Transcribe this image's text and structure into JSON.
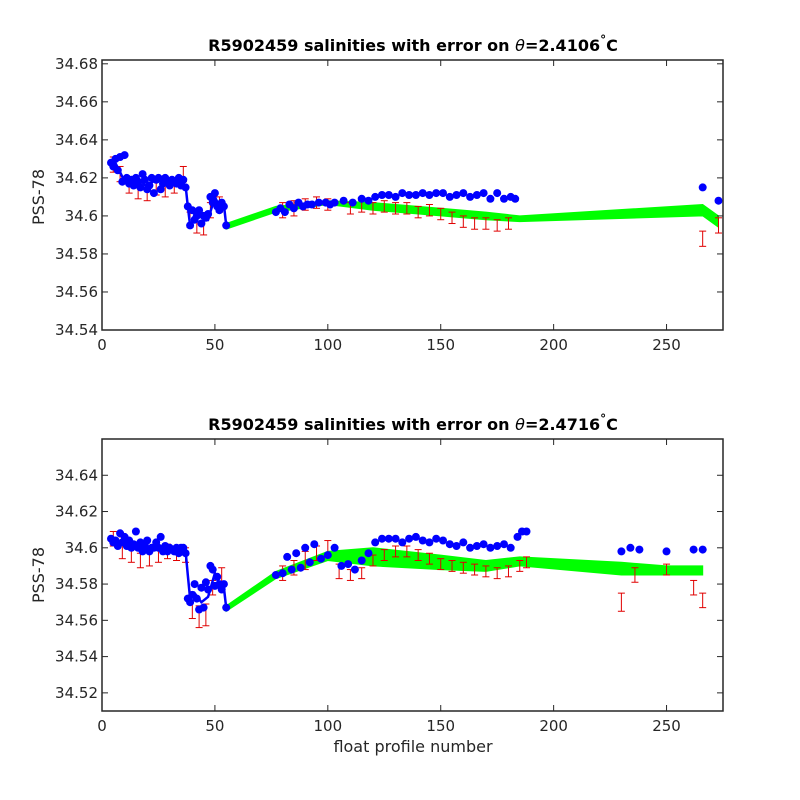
{
  "colors": {
    "background": "#ffffff",
    "axes": "#262626",
    "series_points": "#0000ff",
    "error_bars": "#e00000",
    "error_band": "#00ff00"
  },
  "chart_data": [
    {
      "type": "scatter",
      "title_prefix": "R5902459 salinities with error on ",
      "title_theta": "θ",
      "title_value": "=2.4106",
      "title_degree": "°",
      "title_unit": "C",
      "xlabel": "",
      "ylabel": "PSS-78",
      "xlim": [
        0,
        275
      ],
      "ylim": [
        34.54,
        34.682
      ],
      "x_ticks": [
        0,
        50,
        100,
        150,
        200,
        250
      ],
      "y_ticks": [
        34.54,
        34.56,
        34.58,
        34.6,
        34.62,
        34.64,
        34.66,
        34.68
      ],
      "y_tick_labels": [
        "34.54",
        "34.56",
        "34.58",
        "34.6",
        "34.62",
        "34.64",
        "34.66",
        "34.68"
      ],
      "series": [
        {
          "kind": "line",
          "x": [
            5,
            8,
            10,
            13,
            16,
            20,
            24,
            28,
            31,
            34,
            37,
            38,
            39,
            41,
            44,
            47,
            50,
            52,
            54,
            55
          ],
          "y": [
            34.63,
            34.623,
            34.618,
            34.617,
            34.62,
            34.615,
            34.62,
            34.618,
            34.62,
            34.618,
            34.616,
            34.605,
            34.595,
            34.598,
            34.6,
            34.598,
            34.61,
            34.605,
            34.606,
            34.595
          ]
        },
        {
          "kind": "points",
          "x": [
            4,
            5,
            6,
            7,
            8,
            9,
            10,
            11,
            12,
            13,
            14,
            15,
            16,
            17,
            18,
            19,
            20,
            21,
            22,
            23,
            24,
            25,
            26,
            27,
            28,
            29,
            30,
            31,
            32,
            33,
            34,
            35,
            36,
            37,
            38,
            39,
            40,
            41,
            42,
            43,
            44,
            45,
            46,
            47,
            48,
            49,
            50,
            51,
            52,
            53,
            54,
            55,
            77,
            79,
            81,
            83,
            85,
            87,
            89,
            91,
            93,
            96,
            99,
            101,
            103,
            107,
            111,
            115,
            118,
            121,
            124,
            127,
            130,
            133,
            136,
            139,
            142,
            145,
            148,
            151,
            154,
            157,
            160,
            163,
            166,
            169,
            172,
            175,
            178,
            181,
            183,
            266,
            273
          ],
          "y": [
            34.628,
            34.626,
            34.63,
            34.624,
            34.631,
            34.618,
            34.632,
            34.62,
            34.617,
            34.619,
            34.616,
            34.62,
            34.618,
            34.615,
            34.622,
            34.619,
            34.614,
            34.616,
            34.62,
            34.612,
            34.619,
            34.62,
            34.614,
            34.617,
            34.62,
            34.618,
            34.616,
            34.619,
            34.618,
            34.617,
            34.62,
            34.616,
            34.619,
            34.615,
            34.605,
            34.595,
            34.603,
            34.598,
            34.6,
            34.603,
            34.596,
            34.6,
            34.599,
            34.601,
            34.61,
            34.607,
            34.612,
            34.605,
            34.603,
            34.607,
            34.605,
            34.595,
            34.602,
            34.604,
            34.602,
            34.606,
            34.604,
            34.607,
            34.605,
            34.606,
            34.606,
            34.607,
            34.607,
            34.606,
            34.607,
            34.608,
            34.607,
            34.609,
            34.608,
            34.61,
            34.611,
            34.611,
            34.61,
            34.612,
            34.611,
            34.611,
            34.612,
            34.611,
            34.612,
            34.612,
            34.61,
            34.611,
            34.612,
            34.61,
            34.611,
            34.612,
            34.609,
            34.612,
            34.609,
            34.61,
            34.609,
            34.615,
            34.608
          ]
        },
        {
          "kind": "error_bars",
          "x": [
            5,
            8,
            12,
            16,
            20,
            24,
            28,
            32,
            36,
            39,
            42,
            45,
            48,
            52,
            80,
            85,
            90,
            95,
            100,
            110,
            115,
            120,
            125,
            130,
            135,
            140,
            145,
            150,
            155,
            160,
            165,
            170,
            175,
            180,
            266,
            273
          ],
          "y": [
            34.627,
            34.622,
            34.616,
            34.613,
            34.612,
            34.615,
            34.614,
            34.616,
            34.622,
            34.598,
            34.596,
            34.595,
            34.603,
            34.606,
            34.603,
            34.604,
            34.606,
            34.607,
            34.606,
            34.604,
            34.605,
            34.604,
            34.605,
            34.604,
            34.604,
            34.602,
            34.603,
            34.601,
            34.599,
            34.597,
            34.596,
            34.596,
            34.595,
            34.596,
            34.588,
            34.595
          ],
          "err": [
            0.004,
            0.004,
            0.004,
            0.004,
            0.004,
            0.004,
            0.004,
            0.004,
            0.004,
            0.004,
            0.005,
            0.005,
            0.004,
            0.004,
            0.004,
            0.004,
            0.003,
            0.003,
            0.003,
            0.003,
            0.003,
            0.003,
            0.003,
            0.003,
            0.003,
            0.003,
            0.003,
            0.003,
            0.003,
            0.003,
            0.003,
            0.003,
            0.003,
            0.003,
            0.004,
            0.004
          ]
        },
        {
          "kind": "band",
          "x": [
            55,
            77,
            100,
            120,
            150,
            170,
            185,
            266,
            273
          ],
          "y_low": [
            34.593,
            34.602,
            34.606,
            34.603,
            34.6,
            34.598,
            34.597,
            34.6,
            34.594
          ],
          "y_high": [
            34.596,
            34.605,
            34.608,
            34.607,
            34.604,
            34.602,
            34.6,
            34.606,
            34.6
          ]
        }
      ]
    },
    {
      "type": "scatter",
      "title_prefix": "R5902459 salinities with error on ",
      "title_theta": "θ",
      "title_value": "=2.4716",
      "title_degree": "°",
      "title_unit": "C",
      "xlabel": "float profile number",
      "ylabel": "PSS-78",
      "xlim": [
        0,
        275
      ],
      "ylim": [
        34.51,
        34.66
      ],
      "x_ticks": [
        0,
        50,
        100,
        150,
        200,
        250
      ],
      "y_ticks": [
        34.52,
        34.54,
        34.56,
        34.58,
        34.6,
        34.62,
        34.64
      ],
      "y_tick_labels": [
        "34.52",
        "34.54",
        "34.56",
        "34.58",
        "34.6",
        "34.62",
        "34.64"
      ],
      "series": [
        {
          "kind": "line",
          "x": [
            5,
            8,
            11,
            14,
            18,
            22,
            26,
            30,
            34,
            37,
            38,
            39,
            41,
            44,
            47,
            50,
            52,
            54,
            55
          ],
          "y": [
            34.605,
            34.602,
            34.603,
            34.6,
            34.601,
            34.599,
            34.6,
            34.598,
            34.599,
            34.598,
            34.585,
            34.572,
            34.575,
            34.57,
            34.573,
            34.586,
            34.58,
            34.578,
            34.567
          ]
        },
        {
          "kind": "points",
          "x": [
            4,
            5,
            6,
            7,
            8,
            9,
            10,
            11,
            12,
            13,
            14,
            15,
            16,
            17,
            18,
            19,
            20,
            21,
            22,
            23,
            24,
            25,
            26,
            27,
            28,
            29,
            30,
            31,
            32,
            33,
            34,
            35,
            36,
            37,
            38,
            39,
            40,
            41,
            42,
            43,
            44,
            45,
            46,
            47,
            48,
            49,
            50,
            51,
            52,
            53,
            54,
            55,
            77,
            80,
            82,
            84,
            86,
            88,
            90,
            92,
            94,
            97,
            100,
            103,
            106,
            109,
            112,
            115,
            118,
            121,
            124,
            127,
            130,
            133,
            136,
            139,
            142,
            145,
            148,
            151,
            154,
            157,
            160,
            163,
            166,
            169,
            172,
            175,
            178,
            181,
            184,
            186,
            188,
            230,
            234,
            238,
            250,
            262,
            266
          ],
          "y": [
            34.605,
            34.603,
            34.604,
            34.601,
            34.608,
            34.603,
            34.606,
            34.601,
            34.604,
            34.6,
            34.602,
            34.609,
            34.6,
            34.603,
            34.598,
            34.601,
            34.604,
            34.598,
            34.6,
            34.6,
            34.603,
            34.6,
            34.606,
            34.598,
            34.601,
            34.598,
            34.6,
            34.599,
            34.598,
            34.6,
            34.597,
            34.6,
            34.6,
            34.597,
            34.572,
            34.57,
            34.574,
            34.58,
            34.572,
            34.566,
            34.578,
            34.567,
            34.581,
            34.577,
            34.59,
            34.588,
            34.579,
            34.584,
            34.58,
            34.577,
            34.58,
            34.567,
            34.585,
            34.586,
            34.595,
            34.588,
            34.597,
            34.589,
            34.6,
            34.592,
            34.602,
            34.594,
            34.596,
            34.6,
            34.59,
            34.591,
            34.588,
            34.593,
            34.597,
            34.603,
            34.605,
            34.605,
            34.605,
            34.603,
            34.605,
            34.606,
            34.604,
            34.603,
            34.605,
            34.604,
            34.602,
            34.601,
            34.603,
            34.6,
            34.601,
            34.602,
            34.6,
            34.601,
            34.602,
            34.6,
            34.606,
            34.609,
            34.609,
            34.598,
            34.6,
            34.599,
            34.598,
            34.599,
            34.599
          ]
        },
        {
          "kind": "error_bars",
          "x": [
            5,
            9,
            13,
            17,
            21,
            25,
            29,
            33,
            37,
            40,
            43,
            46,
            49,
            53,
            80,
            85,
            90,
            95,
            100,
            105,
            110,
            115,
            120,
            125,
            130,
            135,
            140,
            145,
            150,
            155,
            160,
            165,
            170,
            175,
            180,
            185,
            188,
            230,
            236,
            250,
            262,
            266
          ],
          "y": [
            34.605,
            34.6,
            34.596,
            34.593,
            34.594,
            34.596,
            34.598,
            34.597,
            34.596,
            34.566,
            34.562,
            34.563,
            34.578,
            34.583,
            34.586,
            34.589,
            34.593,
            34.597,
            34.6,
            34.587,
            34.585,
            34.586,
            34.593,
            34.596,
            34.598,
            34.598,
            34.596,
            34.594,
            34.591,
            34.59,
            34.589,
            34.588,
            34.587,
            34.586,
            34.587,
            34.59,
            34.592,
            34.57,
            34.585,
            34.588,
            34.578,
            34.571
          ],
          "err": [
            0.004,
            0.006,
            0.004,
            0.004,
            0.004,
            0.004,
            0.004,
            0.004,
            0.004,
            0.005,
            0.006,
            0.006,
            0.004,
            0.006,
            0.004,
            0.004,
            0.005,
            0.004,
            0.004,
            0.004,
            0.003,
            0.003,
            0.003,
            0.003,
            0.003,
            0.003,
            0.003,
            0.003,
            0.003,
            0.003,
            0.003,
            0.003,
            0.003,
            0.003,
            0.003,
            0.003,
            0.003,
            0.005,
            0.004,
            0.003,
            0.004,
            0.004
          ]
        },
        {
          "kind": "band",
          "x": [
            55,
            77,
            100,
            120,
            150,
            170,
            185,
            230,
            250,
            266
          ],
          "y_low": [
            34.565,
            34.583,
            34.593,
            34.59,
            34.588,
            34.587,
            34.59,
            34.585,
            34.585,
            34.585
          ],
          "y_high": [
            34.568,
            34.587,
            34.598,
            34.6,
            34.596,
            34.593,
            34.595,
            34.592,
            34.59,
            34.59
          ]
        }
      ]
    }
  ]
}
